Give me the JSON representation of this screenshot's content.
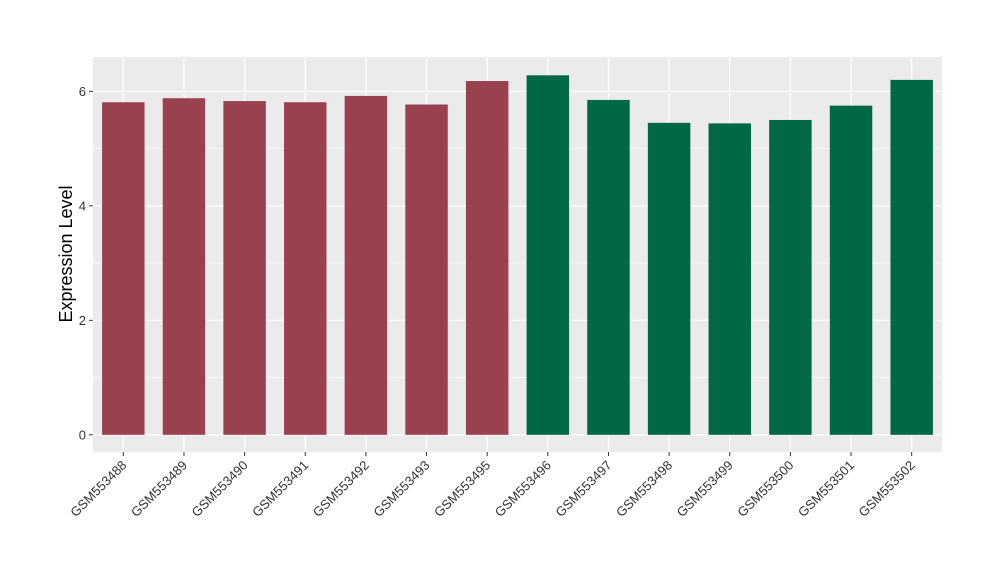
{
  "chart_data": {
    "type": "bar",
    "title": "",
    "xlabel": "",
    "ylabel": "Expression Level",
    "ylim": [
      -0.3,
      6.6
    ],
    "yticks": [
      0,
      2,
      4,
      6
    ],
    "grid": true,
    "background": "#EBEBEB",
    "categories": [
      "GSM553488",
      "GSM553489",
      "GSM553490",
      "GSM553491",
      "GSM553492",
      "GSM553493",
      "GSM553495",
      "GSM553496",
      "GSM553497",
      "GSM553498",
      "GSM553499",
      "GSM553500",
      "GSM553501",
      "GSM553502"
    ],
    "values": [
      5.81,
      5.88,
      5.83,
      5.81,
      5.92,
      5.77,
      6.18,
      6.28,
      5.85,
      5.45,
      5.44,
      5.5,
      5.75,
      6.2
    ],
    "bar_colors": [
      "#9A4150",
      "#9A4150",
      "#9A4150",
      "#9A4150",
      "#9A4150",
      "#9A4150",
      "#9A4150",
      "#006846",
      "#006846",
      "#006846",
      "#006846",
      "#006846",
      "#006846",
      "#006846"
    ]
  }
}
